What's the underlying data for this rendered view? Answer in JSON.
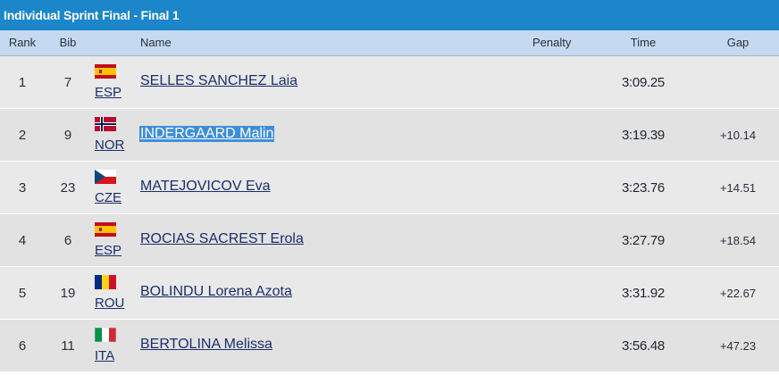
{
  "title": "Individual Sprint Final - Final 1",
  "columns": {
    "rank": "Rank",
    "bib": "Bib",
    "name": "Name",
    "penalty": "Penalty",
    "time": "Time",
    "gap": "Gap"
  },
  "rows": [
    {
      "rank": "1",
      "bib": "7",
      "nation": "ESP",
      "flag_icon": "flag-spain-icon",
      "name": "SELLES SANCHEZ Laia",
      "penalty": "",
      "time": "3:09.25",
      "gap": ""
    },
    {
      "rank": "2",
      "bib": "9",
      "nation": "NOR",
      "flag_icon": "flag-norway-icon",
      "name": "INDERGAARD Malin",
      "penalty": "",
      "time": "3:19.39",
      "gap": "+10.14",
      "selected": true
    },
    {
      "rank": "3",
      "bib": "23",
      "nation": "CZE",
      "flag_icon": "flag-czechia-icon",
      "name": "MATEJOVICOV Eva",
      "penalty": "",
      "time": "3:23.76",
      "gap": "+14.51"
    },
    {
      "rank": "4",
      "bib": "6",
      "nation": "ESP",
      "flag_icon": "flag-spain-icon",
      "name": "ROCIAS SACREST Erola",
      "penalty": "",
      "time": "3:27.79",
      "gap": "+18.54"
    },
    {
      "rank": "5",
      "bib": "19",
      "nation": "ROU",
      "flag_icon": "flag-romania-icon",
      "name": "BOLINDU Lorena Azota",
      "penalty": "",
      "time": "3:31.92",
      "gap": "+22.67"
    },
    {
      "rank": "6",
      "bib": "11",
      "nation": "ITA",
      "flag_icon": "flag-italy-icon",
      "name": "BERTOLINA Melissa",
      "penalty": "",
      "time": "3:56.48",
      "gap": "+47.23"
    }
  ],
  "colors": {
    "title_bar": "#1b86c9",
    "header_row": "#c5daf0",
    "link": "#1a2e6a",
    "selection": "#3e8ed6"
  }
}
